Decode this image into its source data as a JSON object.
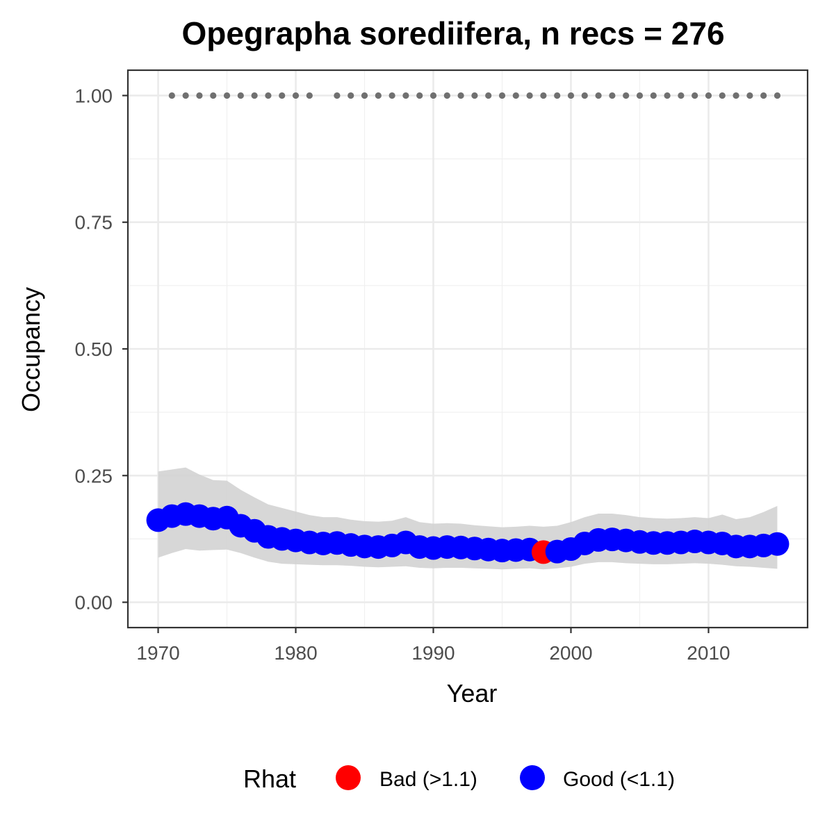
{
  "chart_data": {
    "type": "scatter",
    "title": "Opegrapha sorediifera, n recs = 276",
    "xlabel": "Year",
    "ylabel": "Occupancy",
    "xlim": [
      1967.8,
      2017.2
    ],
    "ylim": [
      -0.05,
      1.05
    ],
    "x_ticks": [
      1970,
      1980,
      1990,
      2000,
      2010
    ],
    "y_ticks": [
      0.0,
      0.25,
      0.5,
      0.75,
      1.0
    ],
    "x_tick_labels": [
      "1970",
      "1980",
      "1990",
      "2000",
      "2010"
    ],
    "y_tick_labels": [
      "0.00",
      "0.25",
      "0.50",
      "0.75",
      "1.00"
    ],
    "grid": true,
    "legend": {
      "title": "Rhat",
      "position": "bottom",
      "entries": [
        {
          "label": "Bad (>1.1)",
          "color": "#ff0000"
        },
        {
          "label": "Good (<1.1)",
          "color": "#0000ff"
        }
      ]
    },
    "colors": {
      "bad": "#ff0000",
      "good": "#0000ff",
      "ribbon": "#d3d3d3",
      "record_dots": "#707070"
    },
    "x": [
      1970,
      1971,
      1972,
      1973,
      1974,
      1975,
      1976,
      1977,
      1978,
      1979,
      1980,
      1981,
      1982,
      1983,
      1984,
      1985,
      1986,
      1987,
      1988,
      1989,
      1990,
      1991,
      1992,
      1993,
      1994,
      1995,
      1996,
      1997,
      1998,
      1999,
      2000,
      2001,
      2002,
      2003,
      2004,
      2005,
      2006,
      2007,
      2008,
      2009,
      2010,
      2011,
      2012,
      2013,
      2014,
      2015
    ],
    "occupancy": [
      0.162,
      0.17,
      0.174,
      0.17,
      0.165,
      0.167,
      0.151,
      0.141,
      0.129,
      0.125,
      0.122,
      0.118,
      0.116,
      0.117,
      0.113,
      0.11,
      0.109,
      0.112,
      0.118,
      0.109,
      0.107,
      0.109,
      0.108,
      0.106,
      0.104,
      0.102,
      0.103,
      0.104,
      0.099,
      0.1,
      0.105,
      0.116,
      0.123,
      0.124,
      0.122,
      0.119,
      0.117,
      0.117,
      0.118,
      0.12,
      0.118,
      0.116,
      0.11,
      0.11,
      0.112,
      0.115
    ],
    "rhat": [
      "Good",
      "Good",
      "Good",
      "Good",
      "Good",
      "Good",
      "Good",
      "Good",
      "Good",
      "Good",
      "Good",
      "Good",
      "Good",
      "Good",
      "Good",
      "Good",
      "Good",
      "Good",
      "Good",
      "Good",
      "Good",
      "Good",
      "Good",
      "Good",
      "Good",
      "Good",
      "Good",
      "Good",
      "Bad",
      "Good",
      "Good",
      "Good",
      "Good",
      "Good",
      "Good",
      "Good",
      "Good",
      "Good",
      "Good",
      "Good",
      "Good",
      "Good",
      "Good",
      "Good",
      "Good",
      "Good"
    ],
    "lower": [
      0.088,
      0.097,
      0.105,
      0.102,
      0.103,
      0.104,
      0.097,
      0.088,
      0.08,
      0.076,
      0.075,
      0.074,
      0.073,
      0.073,
      0.072,
      0.07,
      0.069,
      0.07,
      0.071,
      0.068,
      0.067,
      0.068,
      0.068,
      0.067,
      0.066,
      0.065,
      0.066,
      0.067,
      0.065,
      0.067,
      0.07,
      0.076,
      0.079,
      0.079,
      0.077,
      0.076,
      0.075,
      0.075,
      0.076,
      0.077,
      0.076,
      0.074,
      0.071,
      0.07,
      0.068,
      0.066
    ],
    "upper": [
      0.258,
      0.262,
      0.266,
      0.252,
      0.241,
      0.24,
      0.222,
      0.207,
      0.193,
      0.186,
      0.179,
      0.172,
      0.168,
      0.168,
      0.163,
      0.16,
      0.159,
      0.161,
      0.168,
      0.158,
      0.155,
      0.156,
      0.155,
      0.152,
      0.15,
      0.148,
      0.149,
      0.151,
      0.149,
      0.151,
      0.158,
      0.168,
      0.175,
      0.175,
      0.172,
      0.168,
      0.166,
      0.165,
      0.166,
      0.168,
      0.166,
      0.173,
      0.164,
      0.168,
      0.178,
      0.19
    ],
    "record_years": [
      1971,
      1972,
      1973,
      1974,
      1975,
      1976,
      1977,
      1978,
      1979,
      1980,
      1981,
      1983,
      1984,
      1985,
      1986,
      1987,
      1988,
      1989,
      1990,
      1991,
      1992,
      1993,
      1994,
      1995,
      1996,
      1997,
      1998,
      1999,
      2000,
      2001,
      2002,
      2003,
      2004,
      2005,
      2006,
      2007,
      2008,
      2009,
      2010,
      2011,
      2012,
      2013,
      2014,
      2015
    ],
    "record_value": 1.0
  }
}
